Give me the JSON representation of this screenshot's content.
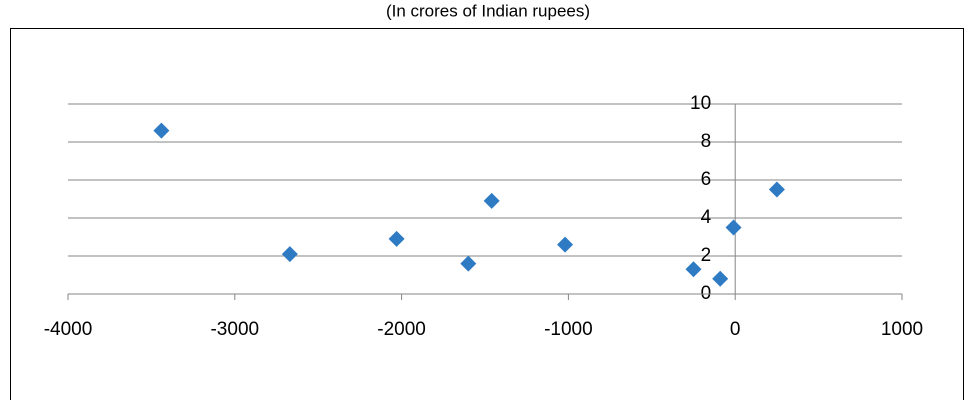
{
  "chart_data": {
    "type": "scatter",
    "title": "(In crores of Indian rupees)",
    "x": [
      -3440,
      -2670,
      -2030,
      -1600,
      -1460,
      -1020,
      -250,
      -90,
      -10,
      250
    ],
    "values": [
      8.6,
      2.1,
      2.9,
      1.6,
      4.9,
      2.6,
      1.3,
      0.8,
      3.5,
      5.5
    ],
    "color": "#2e7bc4",
    "xlim": [
      -4000,
      1000
    ],
    "xticks": [
      -4000,
      -3000,
      -2000,
      -1000,
      0,
      1000
    ],
    "ylim": [
      0,
      10
    ],
    "yticks": [
      0,
      2,
      4,
      6,
      8,
      10
    ],
    "grid": true
  }
}
